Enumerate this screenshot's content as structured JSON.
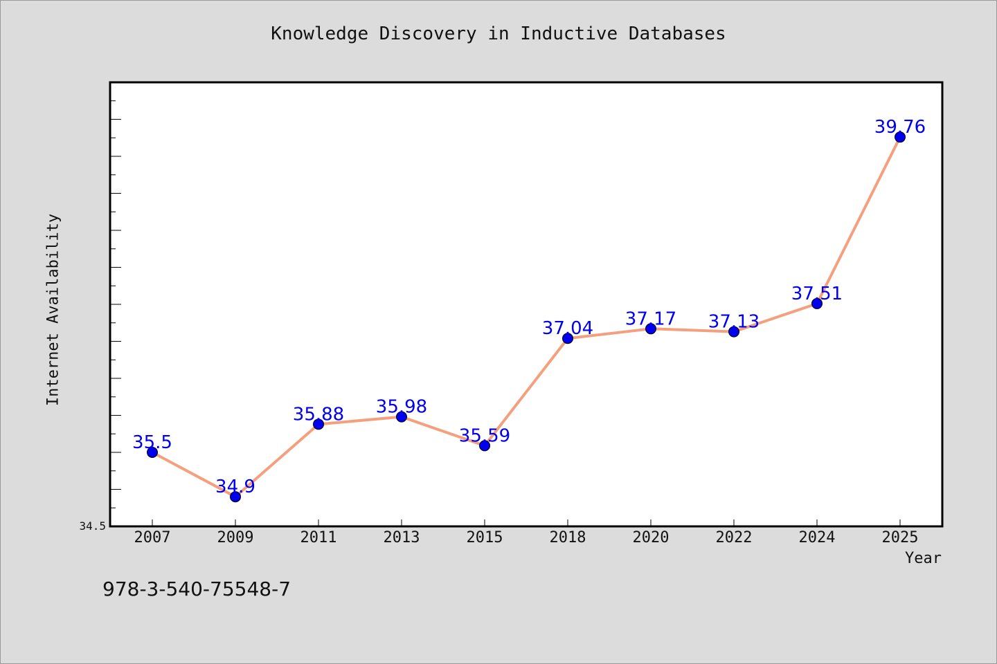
{
  "chart_data": {
    "type": "line",
    "title": "Knowledge Discovery in Inductive Databases",
    "xlabel": "Year",
    "ylabel": "Internet Availability",
    "categories": [
      "2007",
      "2009",
      "2011",
      "2013",
      "2015",
      "2018",
      "2020",
      "2022",
      "2024",
      "2025"
    ],
    "series": [
      {
        "values": [
          35.5,
          34.9,
          35.88,
          35.98,
          35.59,
          37.04,
          37.17,
          37.13,
          37.51,
          39.76
        ],
        "labels": [
          "35.5",
          "34.9",
          "35.88",
          "35.98",
          "35.59",
          "37.04",
          "37.17",
          "37.13",
          "37.51",
          "39.76"
        ]
      }
    ],
    "ylim": [
      34.5,
      40.5
    ],
    "y_tick_labels": [
      "34.5"
    ],
    "grid": false,
    "colors": {
      "line": "#f4a07e",
      "marker": "#0000ee",
      "data_label": "#0000ee",
      "plot_background": "#ffffff",
      "page_background": "#dcdcdc"
    }
  },
  "footer": {
    "code": "978-3-540-75548-7"
  }
}
